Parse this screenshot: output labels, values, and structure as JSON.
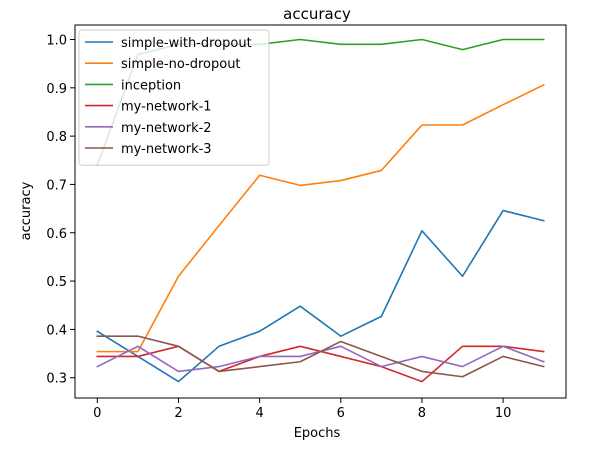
{
  "chart_data": {
    "type": "line",
    "title": "accuracy",
    "xlabel": "Epochs",
    "ylabel": "accuracy",
    "x": [
      0,
      1,
      2,
      3,
      4,
      5,
      6,
      7,
      8,
      9,
      10,
      11
    ],
    "xlim": [
      -0.55,
      11.55
    ],
    "ylim": [
      0.258,
      1.03
    ],
    "xticks": [
      0,
      2,
      4,
      6,
      8,
      10
    ],
    "yticks": [
      0.3,
      0.4,
      0.5,
      0.6,
      0.7,
      0.8,
      0.9,
      1.0
    ],
    "ytick_labels": [
      "0.3",
      "0.4",
      "0.5",
      "0.6",
      "0.7",
      "0.8",
      "0.9",
      "1.0"
    ],
    "legend_position": "top-left",
    "grid": false,
    "series": [
      {
        "name": "simple-with-dropout",
        "color": "#1f77b4",
        "values": [
          0.396,
          0.344,
          0.292,
          0.365,
          0.396,
          0.448,
          0.386,
          0.427,
          0.604,
          0.51,
          0.646,
          0.625
        ]
      },
      {
        "name": "simple-no-dropout",
        "color": "#ff7f0e",
        "values": [
          0.354,
          0.354,
          0.51,
          0.615,
          0.719,
          0.698,
          0.708,
          0.729,
          0.823,
          0.823,
          0.865,
          0.906
        ]
      },
      {
        "name": "inception",
        "color": "#2ca02c",
        "values": [
          0.74,
          0.969,
          0.99,
          0.99,
          0.99,
          1.0,
          0.99,
          0.99,
          1.0,
          0.979,
          1.0,
          1.0
        ]
      },
      {
        "name": "my-network-1",
        "color": "#d62728",
        "values": [
          0.344,
          0.344,
          0.365,
          0.313,
          0.344,
          0.365,
          0.344,
          0.323,
          0.292,
          0.365,
          0.365,
          0.354
        ]
      },
      {
        "name": "my-network-2",
        "color": "#9467bd",
        "values": [
          0.323,
          0.365,
          0.313,
          0.323,
          0.344,
          0.344,
          0.365,
          0.323,
          0.344,
          0.323,
          0.365,
          0.333
        ]
      },
      {
        "name": "my-network-3",
        "color": "#8c564b",
        "values": [
          0.386,
          0.386,
          0.365,
          0.313,
          0.323,
          0.333,
          0.375,
          0.344,
          0.313,
          0.302,
          0.344,
          0.323
        ]
      }
    ]
  }
}
